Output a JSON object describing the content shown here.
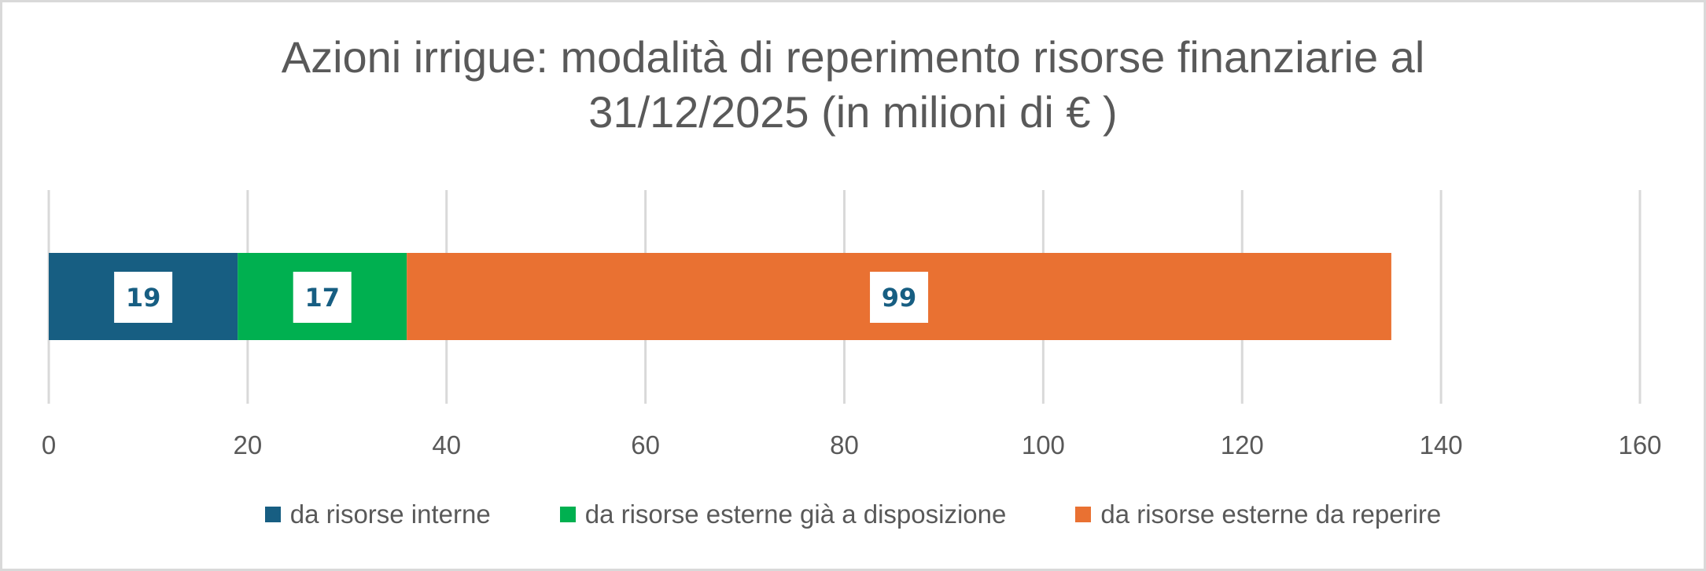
{
  "chart_data": {
    "type": "bar",
    "orientation": "horizontal",
    "stacked": true,
    "title": "Azioni irrigue: modalità di reperimento risorse finanziarie al 31/12/2025 (in milioni di € )",
    "title_lines": [
      "Azioni irrigue: modalità di reperimento risorse finanziarie al",
      "31/12/2025 (in milioni di € )"
    ],
    "xlim": [
      0,
      160
    ],
    "xticks": [
      0,
      20,
      40,
      60,
      80,
      100,
      120,
      140,
      160
    ],
    "grid": true,
    "legend_position": "bottom",
    "series": [
      {
        "name": "da risorse interne",
        "value": 19,
        "color": "#175e82"
      },
      {
        "name": "da risorse esterne già a disposizione",
        "value": 17,
        "color": "#00b050"
      },
      {
        "name": "da risorse esterne da reperire",
        "value": 99,
        "color": "#e97132"
      }
    ],
    "data_label_color": "#175e82"
  }
}
